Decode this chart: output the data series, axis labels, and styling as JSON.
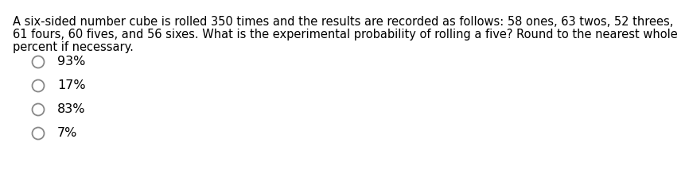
{
  "question_line1": "A six-sided number cube is rolled 350 times and the results are recorded as follows: 58 ones, 63 twos, 52 threes,",
  "question_line2": "61 fours, 60 fives, and 56 sixes. What is the experimental probability of rolling a five? Round to the nearest whole",
  "question_line3": "percent if necessary.",
  "options": [
    "93%",
    "17%",
    "83%",
    "7%"
  ],
  "background_color": "#ffffff",
  "text_color": "#000000",
  "font_size_question": 10.5,
  "font_size_options": 11.5,
  "circle_color": "#888888"
}
